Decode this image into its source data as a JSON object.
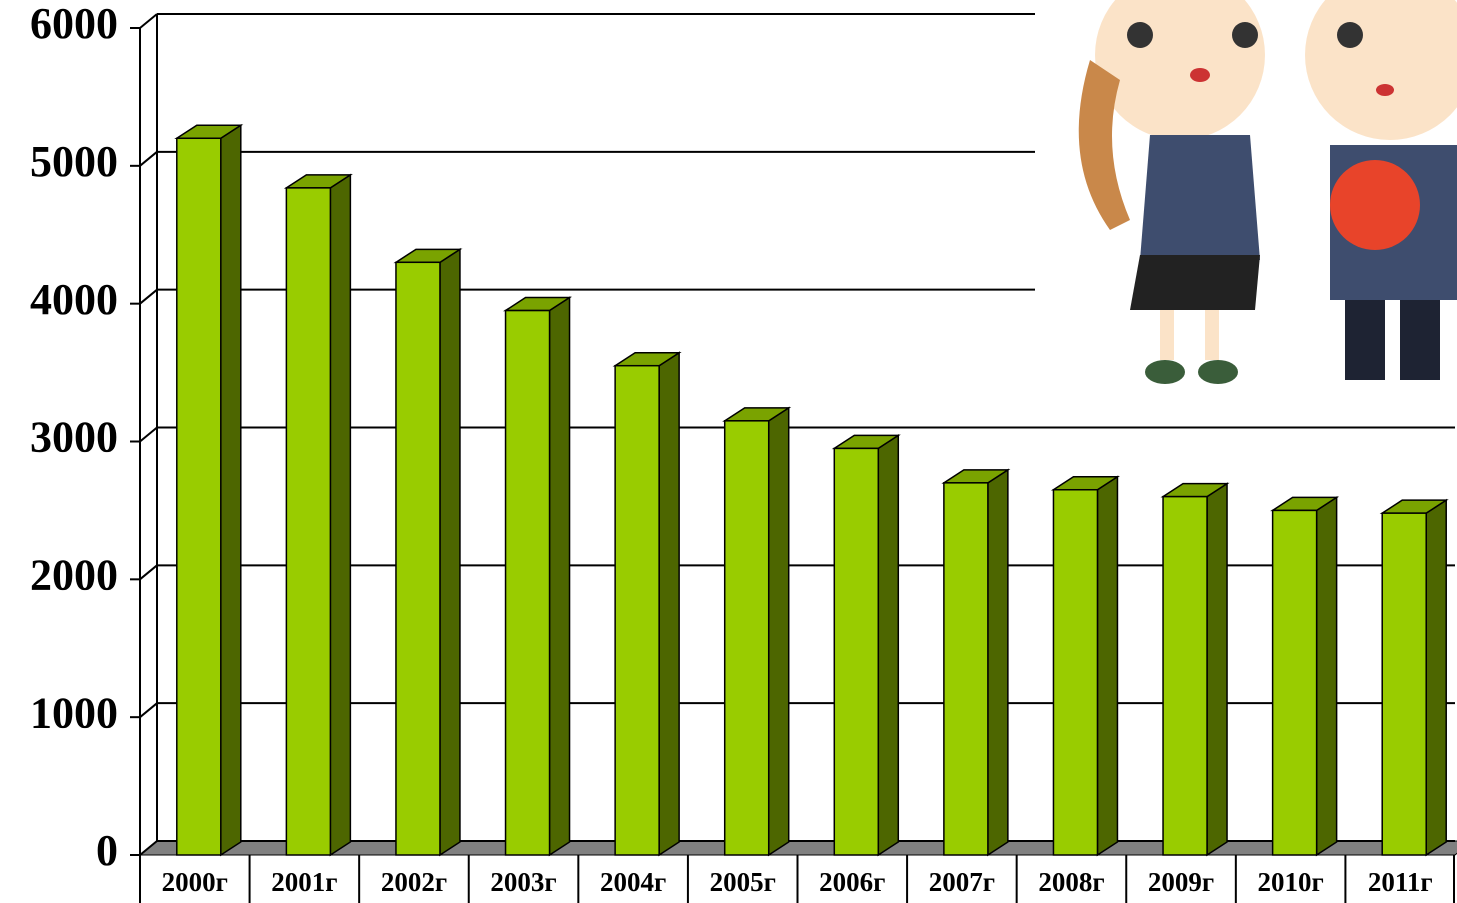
{
  "chart_data": {
    "type": "bar3d",
    "categories": [
      "2000г",
      "2001г",
      "2002г",
      "2003г",
      "2004г",
      "2005г",
      "2006г",
      "2007г",
      "2008г",
      "2009г",
      "2010г",
      "2011г"
    ],
    "values": [
      5200,
      4840,
      4300,
      3950,
      3550,
      3150,
      2950,
      2700,
      2650,
      2600,
      2500,
      2480
    ],
    "color": "#99cc00",
    "ylim": [
      0,
      6000
    ],
    "yticks": [
      0,
      1000,
      2000,
      3000,
      4000,
      5000,
      6000
    ],
    "grid": true
  }
}
